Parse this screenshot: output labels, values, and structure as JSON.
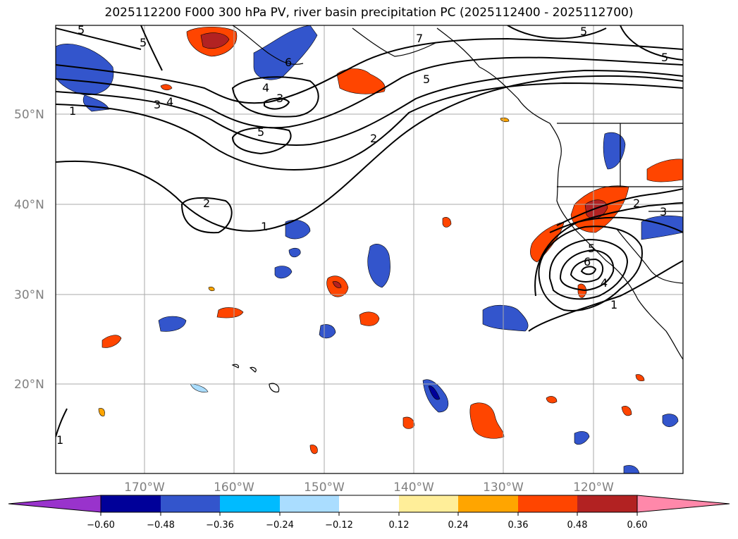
{
  "title": "2025112200 F000 300 hPa PV, river basin precipitation PC (2025112400 - 2025112700)",
  "map": {
    "lat_labels": [
      "50°N",
      "40°N",
      "30°N",
      "20°N"
    ],
    "lon_labels": [
      "170°W",
      "160°W",
      "150°W",
      "140°W",
      "130°W",
      "120°W"
    ],
    "contour_labels": [
      "5",
      "5",
      "7",
      "6",
      "4",
      "3",
      "4",
      "3",
      "1",
      "5",
      "5",
      "2",
      "2",
      "1",
      "5",
      "5",
      "2",
      "3",
      "5",
      "6",
      "4",
      "1",
      "1"
    ]
  },
  "colorbar": {
    "ticks": [
      "−0.60",
      "−0.48",
      "−0.36",
      "−0.24",
      "−0.12",
      "0.12",
      "0.24",
      "0.36",
      "0.48",
      "0.60"
    ],
    "colors": [
      "#9933cc",
      "#000099",
      "#3355cc",
      "#00bbff",
      "#aaddff",
      "#ffffff",
      "#ffee99",
      "#ffa500",
      "#ff4500",
      "#b22222",
      "#ff88aa"
    ]
  }
}
